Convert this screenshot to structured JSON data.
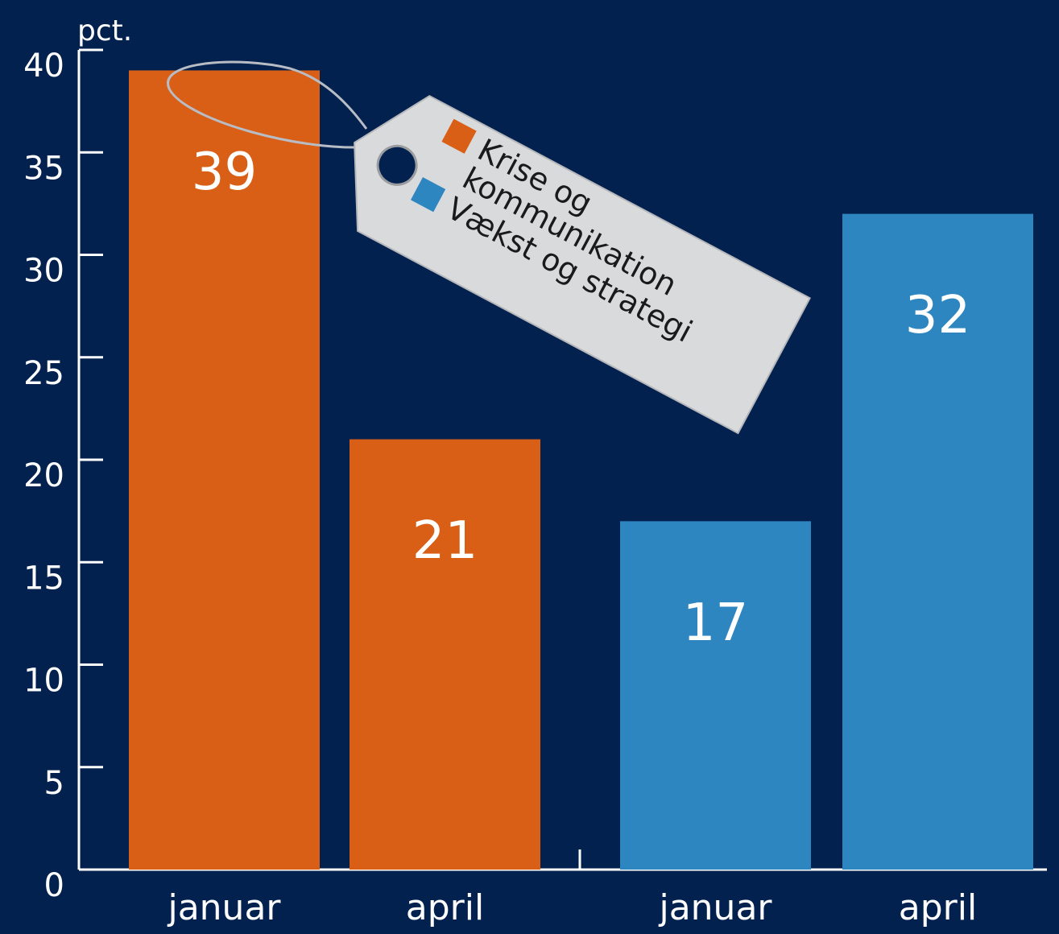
{
  "chart_data": {
    "type": "bar",
    "y_label": "pct.",
    "categories": [
      "januar",
      "april",
      "januar",
      "april"
    ],
    "series": [
      {
        "name": "Krise og kommunikation",
        "color": "#d95f16",
        "values": [
          39,
          21,
          null,
          null
        ]
      },
      {
        "name": "Vækst og strategi",
        "color": "#2e86c1",
        "values": [
          null,
          null,
          17,
          32
        ]
      }
    ],
    "ylim": [
      0,
      40
    ],
    "yticks": [
      0,
      5,
      10,
      15,
      20,
      25,
      30,
      35,
      40
    ]
  }
}
